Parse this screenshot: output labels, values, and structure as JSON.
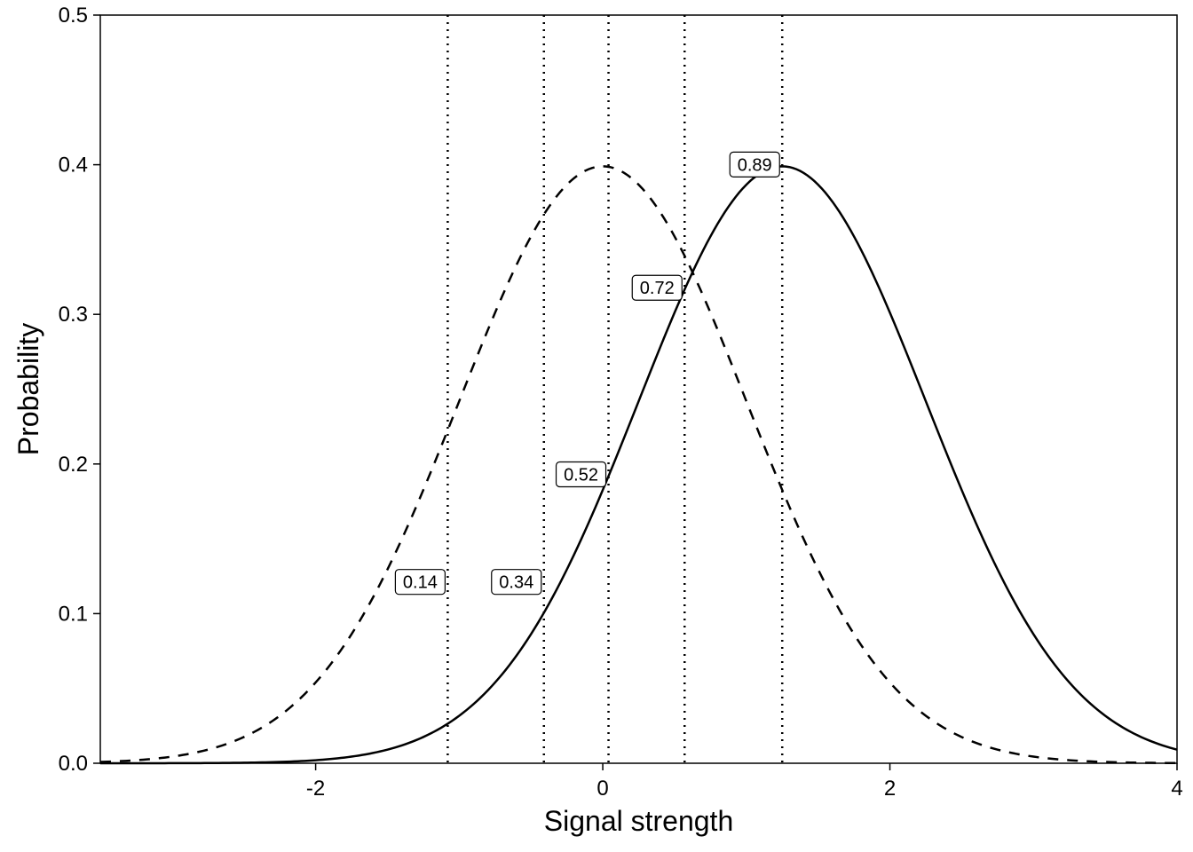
{
  "chart_data": {
    "type": "line",
    "title": "",
    "xlabel": "Signal strength",
    "ylabel": "Probability",
    "xlim": [
      -3.5,
      4
    ],
    "ylim": [
      0,
      0.5
    ],
    "x_ticks": [
      -2,
      0,
      2,
      4
    ],
    "x_tick_labels": [
      "-2",
      "0",
      "2",
      "4"
    ],
    "y_ticks": [
      0,
      0.1,
      0.2,
      0.3,
      0.4,
      0.5
    ],
    "y_tick_labels": [
      "0.0",
      "0.1",
      "0.2",
      "0.3",
      "0.4",
      "0.5"
    ],
    "grid": false,
    "legend": "none",
    "series": [
      {
        "style": "dashed",
        "distribution": "normal",
        "mean": 0.0,
        "sd": 1.0
      },
      {
        "style": "solid",
        "distribution": "normal",
        "mean": 1.25,
        "sd": 1.0
      }
    ],
    "criteria": [
      {
        "x": -1.08,
        "label": "0.14"
      },
      {
        "x": -0.41,
        "label": "0.34"
      },
      {
        "x": 0.04,
        "label": "0.52"
      },
      {
        "x": 0.57,
        "label": "0.72"
      },
      {
        "x": 1.25,
        "label": "0.89"
      }
    ]
  }
}
